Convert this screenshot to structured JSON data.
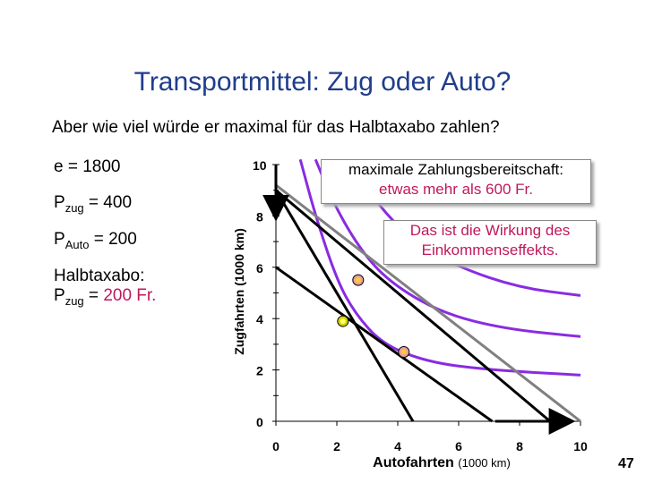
{
  "title": "Transportmittel: Zug oder Auto?",
  "subtitle": "Aber wie viel würde er maximal für das Halbtaxabo zahlen?",
  "left_panel": {
    "income": "e = 1800",
    "pzug_main": "P",
    "pzug_sub": "zug",
    "pzug_val": " = 400",
    "pauto_main": "P",
    "pauto_sub": "Auto",
    "pauto_val": " = 200",
    "halbtax_label": "Halbtaxabo:",
    "halbtax_p_main": "P",
    "halbtax_p_sub": "zug",
    "halbtax_eq": " = ",
    "halbtax_val": "200 Fr."
  },
  "note1": {
    "line1": "maximale Zahlungsbereitschaft:",
    "line2": "etwas mehr als 600 Fr."
  },
  "note2": {
    "line1": "Das ist die Wirkung des",
    "line2": "Einkommenseffekts."
  },
  "page_number": "47",
  "chart_data": {
    "type": "line",
    "xlabel_main": "Autofahrten",
    "xlabel_unit": "(1000 km)",
    "ylabel": "Zugfahrten (1000 km)",
    "xlim": [
      0,
      10
    ],
    "ylim": [
      0,
      10
    ],
    "x_ticks": [
      "0",
      "2",
      "4",
      "6",
      "8",
      "10"
    ],
    "y_ticks": [
      "0",
      "2",
      "4",
      "6",
      "8",
      "10"
    ],
    "budget_lines": [
      {
        "name": "original",
        "color": "#000000",
        "points": [
          [
            0,
            9
          ],
          [
            9,
            0
          ]
        ]
      },
      {
        "name": "halbtax",
        "color": "#000000",
        "points": [
          [
            0,
            9
          ],
          [
            4.5,
            0
          ]
        ]
      },
      {
        "name": "parallel",
        "color": "#000000",
        "points": [
          [
            0,
            6
          ],
          [
            7.1,
            0
          ]
        ]
      },
      {
        "name": "compensated",
        "color": "#808080",
        "points": [
          [
            0,
            9.2
          ],
          [
            10,
            0
          ]
        ]
      }
    ],
    "indifference_curves": [
      {
        "color": "#8a2be2",
        "points": [
          [
            0.8,
            10.2
          ],
          [
            1.3,
            8.0
          ],
          [
            2.0,
            5.5
          ],
          [
            2.6,
            4.2
          ],
          [
            3.5,
            3.0
          ],
          [
            5.0,
            2.3
          ],
          [
            7.0,
            2.0
          ],
          [
            10,
            1.8
          ]
        ]
      },
      {
        "color": "#8a2be2",
        "points": [
          [
            1.3,
            10.2
          ],
          [
            2.0,
            8.2
          ],
          [
            3.0,
            6.3
          ],
          [
            4.0,
            5.2
          ],
          [
            5.5,
            4.2
          ],
          [
            7.5,
            3.6
          ],
          [
            10,
            3.3
          ]
        ]
      },
      {
        "color": "#8a2be2",
        "points": [
          [
            2.5,
            10.0
          ],
          [
            3.3,
            8.5
          ],
          [
            4.5,
            7.0
          ],
          [
            6.0,
            6.0
          ],
          [
            8.0,
            5.2
          ],
          [
            10,
            4.9
          ]
        ]
      }
    ],
    "points": [
      {
        "x": 2.7,
        "y": 5.5,
        "color": "#e8a0a0"
      },
      {
        "x": 2.2,
        "y": 3.9,
        "color": "#d4d400"
      },
      {
        "x": 4.2,
        "y": 2.7,
        "color": "#e8a0a0"
      }
    ],
    "arrows": [
      {
        "from": [
          0,
          10
        ],
        "to": [
          0,
          8.3
        ]
      },
      {
        "from": [
          7.2,
          0
        ],
        "to": [
          9.4,
          0
        ]
      }
    ]
  }
}
